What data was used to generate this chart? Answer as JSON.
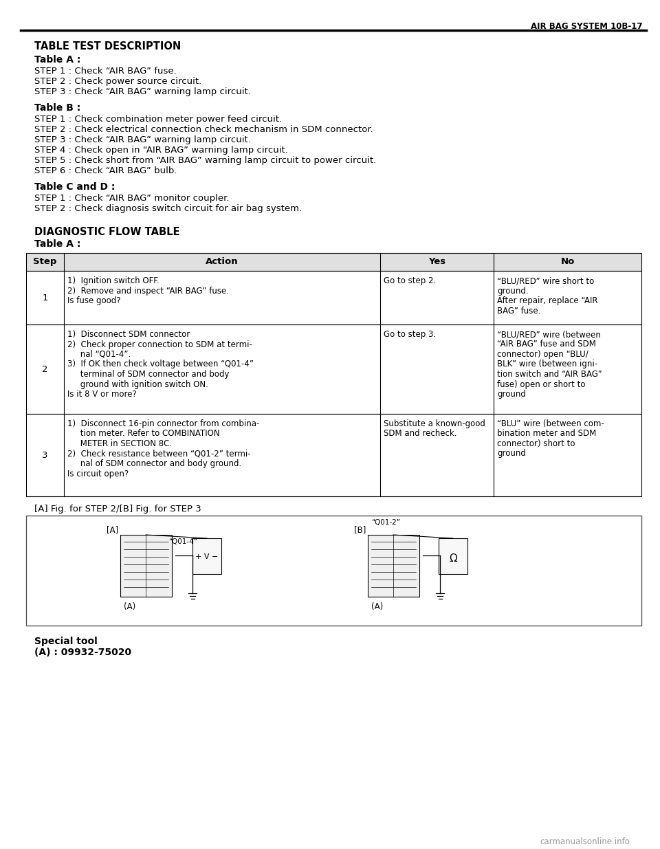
{
  "header_text": "AIR BAG SYSTEM 10B-17",
  "section_title": "TABLE TEST DESCRIPTION",
  "table_a_title": "Table A :",
  "table_a_steps": [
    "STEP 1 : Check “AIR BAG” fuse.",
    "STEP 2 : Check power source circuit.",
    "STEP 3 : Check “AIR BAG” warning lamp circuit."
  ],
  "table_b_title": "Table B :",
  "table_b_steps": [
    "STEP 1 : Check combination meter power feed circuit.",
    "STEP 2 : Check electrical connection check mechanism in SDM connector.",
    "STEP 3 : Check “AIR BAG” warning lamp circuit.",
    "STEP 4 : Check open in “AIR BAG” warning lamp circuit.",
    "STEP 5 : Check short from “AIR BAG” warning lamp circuit to power circuit.",
    "STEP 6 : Check “AIR BAG” bulb."
  ],
  "table_cd_title": "Table C and D :",
  "table_cd_steps": [
    "STEP 1 : Check “AIR BAG” monitor coupler.",
    "STEP 2 : Check diagnosis switch circuit for air bag system."
  ],
  "diag_title": "DIAGNOSTIC FLOW TABLE",
  "diag_table_a": "Table A :",
  "table_headers": [
    "Step",
    "Action",
    "Yes",
    "No"
  ],
  "table_rows": [
    {
      "step": "1",
      "action_lines": [
        "1)  Ignition switch OFF.",
        "2)  Remove and inspect “AIR BAG” fuse.",
        "Is fuse good?"
      ],
      "yes_lines": [
        "Go to step 2."
      ],
      "no_lines": [
        "“BLU/RED” wire short to",
        "ground.",
        "After repair, replace “AIR",
        "BAG” fuse."
      ]
    },
    {
      "step": "2",
      "action_lines": [
        "1)  Disconnect SDM connector",
        "2)  Check proper connection to SDM at termi-",
        "     nal “Q01-4”.",
        "3)  If OK then check voltage between “Q01-4”",
        "     terminal of SDM connector and body",
        "     ground with ignition switch ON.",
        "Is it 8 V or more?"
      ],
      "yes_lines": [
        "Go to step 3."
      ],
      "no_lines": [
        "“BLU/RED” wire (between",
        "“AIR BAG” fuse and SDM",
        "connector) open “BLU/",
        "BLK” wire (between igni-",
        "tion switch and “AIR BAG”",
        "fuse) open or short to",
        "ground"
      ]
    },
    {
      "step": "3",
      "action_lines": [
        "1)  Disconnect 16-pin connector from combina-",
        "     tion meter. Refer to COMBINATION",
        "     METER in SECTION 8C.",
        "2)  Check resistance between “Q01-2” termi-",
        "     nal of SDM connector and body ground.",
        "Is circuit open?"
      ],
      "yes_lines": [
        "Substitute a known-good",
        "SDM and recheck."
      ],
      "no_lines": [
        "“BLU” wire (between com-",
        "bination meter and SDM",
        "connector) short to",
        "ground"
      ]
    }
  ],
  "fig_caption": "[A] Fig. for STEP 2/[B] Fig. for STEP 3",
  "special_tool_label": "Special tool",
  "special_tool_value": "(A) : 09932-75020",
  "watermark": "carmanualsonline.info",
  "bg_color": "#ffffff",
  "text_color": "#000000"
}
